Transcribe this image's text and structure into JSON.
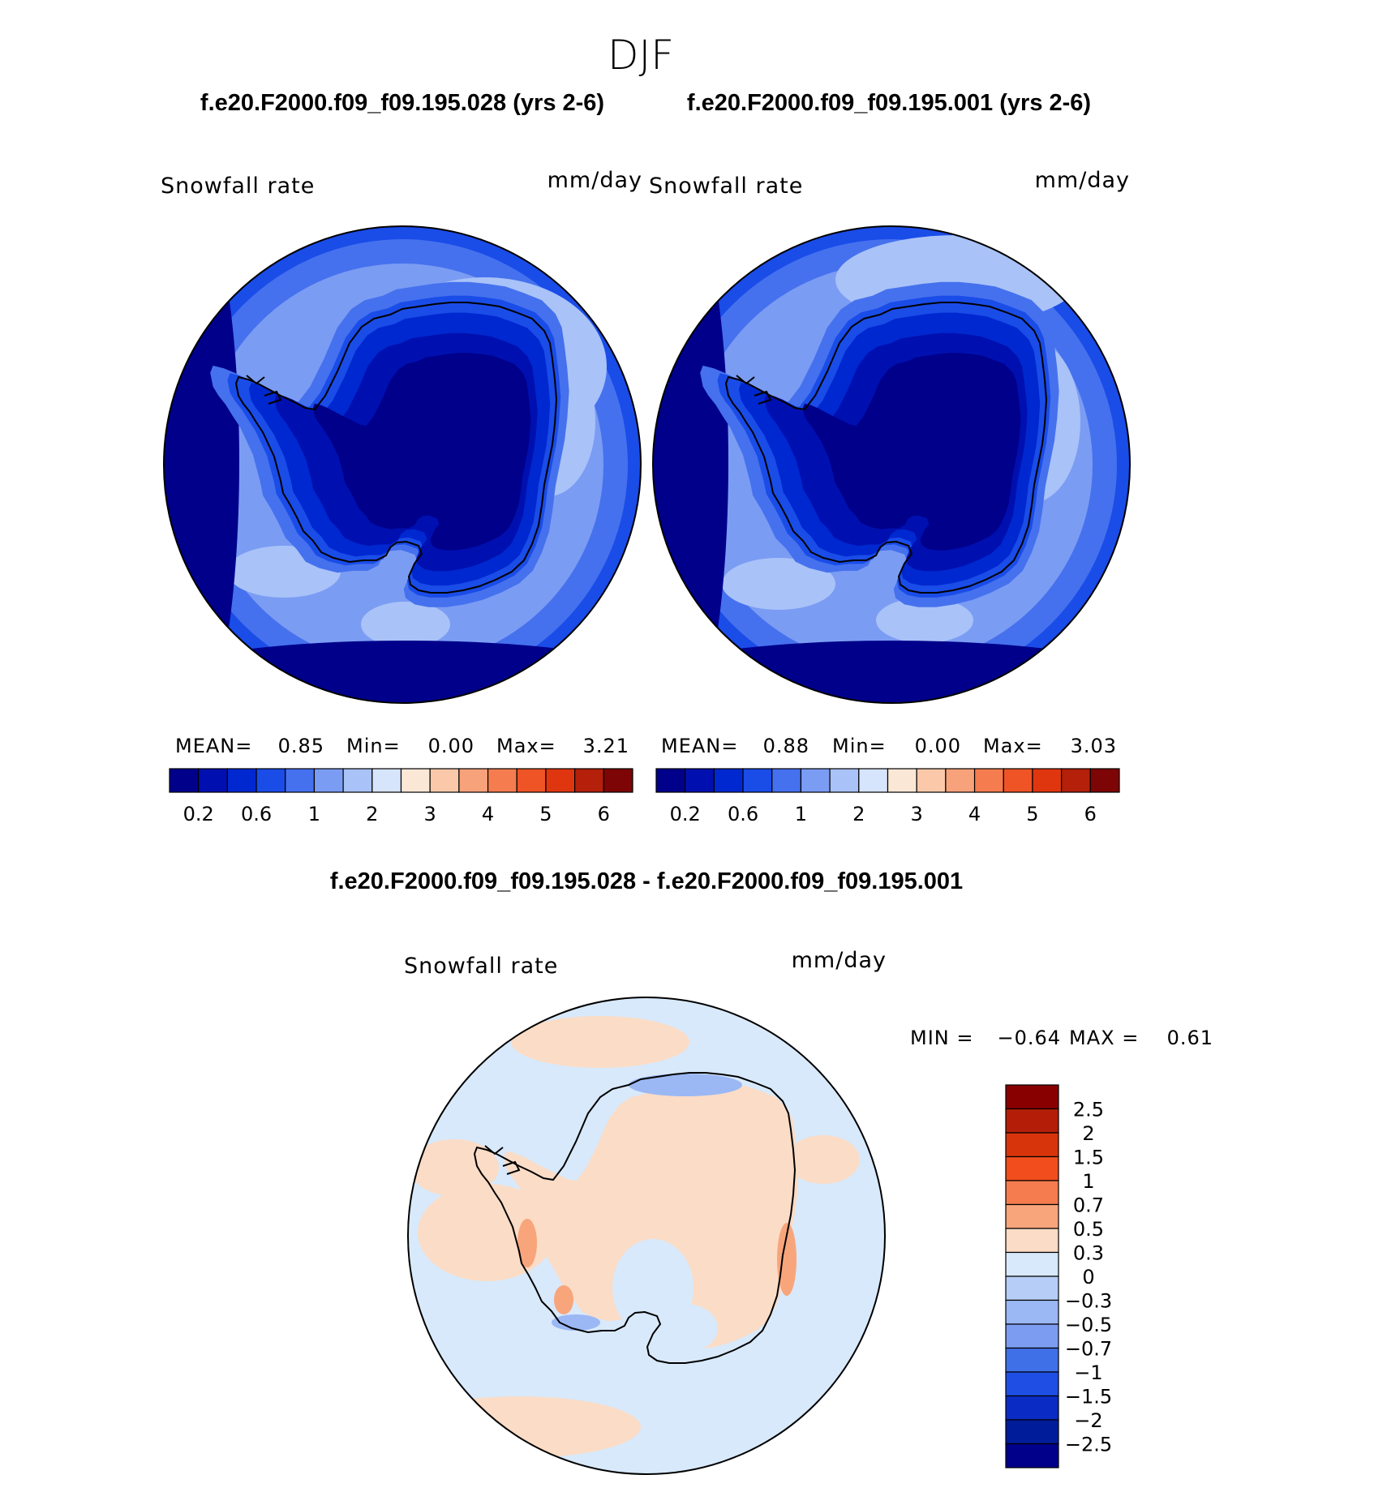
{
  "figure": {
    "season": "DJF"
  },
  "panels": [
    {
      "case_title": "f.e20.F2000.f09_f09.195.028 (yrs 2-6)",
      "variable": "Snowfall rate",
      "units": "mm/day",
      "stats": {
        "mean_label": "MEAN=",
        "mean": "0.85",
        "min_label": "Min=",
        "min": "0.00",
        "max_label": "Max=",
        "max": "3.21"
      }
    },
    {
      "case_title": "f.e20.F2000.f09_f09.195.001 (yrs 2-6)",
      "variable": "Snowfall rate",
      "units": "mm/day",
      "stats": {
        "mean_label": "MEAN=",
        "mean": "0.88",
        "min_label": "Min=",
        "min": "0.00",
        "max_label": "Max=",
        "max": "3.03"
      }
    }
  ],
  "difference": {
    "title": "f.e20.F2000.f09_f09.195.028 - f.e20.F2000.f09_f09.195.001",
    "variable": "Snowfall rate",
    "units": "mm/day",
    "stats": {
      "min_label": "MIN =",
      "min": "−0.64",
      "max_label": "MAX =",
      "max": "0.61"
    }
  },
  "chart_data": [
    {
      "type": "heatmap",
      "projection": "south-polar-stereographic",
      "title": "f.e20.F2000.f09_f09.195.028 (yrs 2-6)",
      "variable": "Snowfall rate",
      "units": "mm/day",
      "mean": 0.85,
      "min": 0.0,
      "max": 3.21,
      "colorbar": {
        "orientation": "horizontal",
        "tick_labels": [
          "0.2",
          "0.6",
          "1",
          "2",
          "3",
          "4",
          "5",
          "6"
        ],
        "colors": [
          "#00008b",
          "#0010b0",
          "#0028d0",
          "#1a4ce8",
          "#4571ee",
          "#7b9cf3",
          "#a9c2f8",
          "#d6e4fc",
          "#fbe7d6",
          "#fbc9aa",
          "#f8a27b",
          "#f47c4e",
          "#ee5426",
          "#e0360f",
          "#b4200a",
          "#7d0505"
        ]
      }
    },
    {
      "type": "heatmap",
      "projection": "south-polar-stereographic",
      "title": "f.e20.F2000.f09_f09.195.001 (yrs 2-6)",
      "variable": "Snowfall rate",
      "units": "mm/day",
      "mean": 0.88,
      "min": 0.0,
      "max": 3.03,
      "colorbar": {
        "orientation": "horizontal",
        "tick_labels": [
          "0.2",
          "0.6",
          "1",
          "2",
          "3",
          "4",
          "5",
          "6"
        ],
        "colors": [
          "#00008b",
          "#0010b0",
          "#0028d0",
          "#1a4ce8",
          "#4571ee",
          "#7b9cf3",
          "#a9c2f8",
          "#d6e4fc",
          "#fbe7d6",
          "#fbc9aa",
          "#f8a27b",
          "#f47c4e",
          "#ee5426",
          "#e0360f",
          "#b4200a",
          "#7d0505"
        ]
      }
    },
    {
      "type": "heatmap",
      "projection": "south-polar-stereographic",
      "title": "f.e20.F2000.f09_f09.195.028 - f.e20.F2000.f09_f09.195.001",
      "variable": "Snowfall rate",
      "units": "mm/day",
      "min": -0.64,
      "max": 0.61,
      "colorbar": {
        "orientation": "vertical",
        "tick_labels": [
          "2.5",
          "2",
          "1.5",
          "1",
          "0.7",
          "0.5",
          "0.3",
          "0",
          "−0.3",
          "−0.5",
          "−0.7",
          "−1",
          "−1.5",
          "−2",
          "−2.5"
        ],
        "colors_top_to_bottom": [
          "#880000",
          "#b41e08",
          "#d8340c",
          "#f24d1d",
          "#f47c4e",
          "#f8a57c",
          "#fbdcc6",
          "#d8e9fb",
          "#b6cdf7",
          "#9bb8f4",
          "#7b9cf0",
          "#4070e8",
          "#1f4ee4",
          "#0a2bc4",
          "#001c9a",
          "#00008b"
        ]
      }
    }
  ]
}
